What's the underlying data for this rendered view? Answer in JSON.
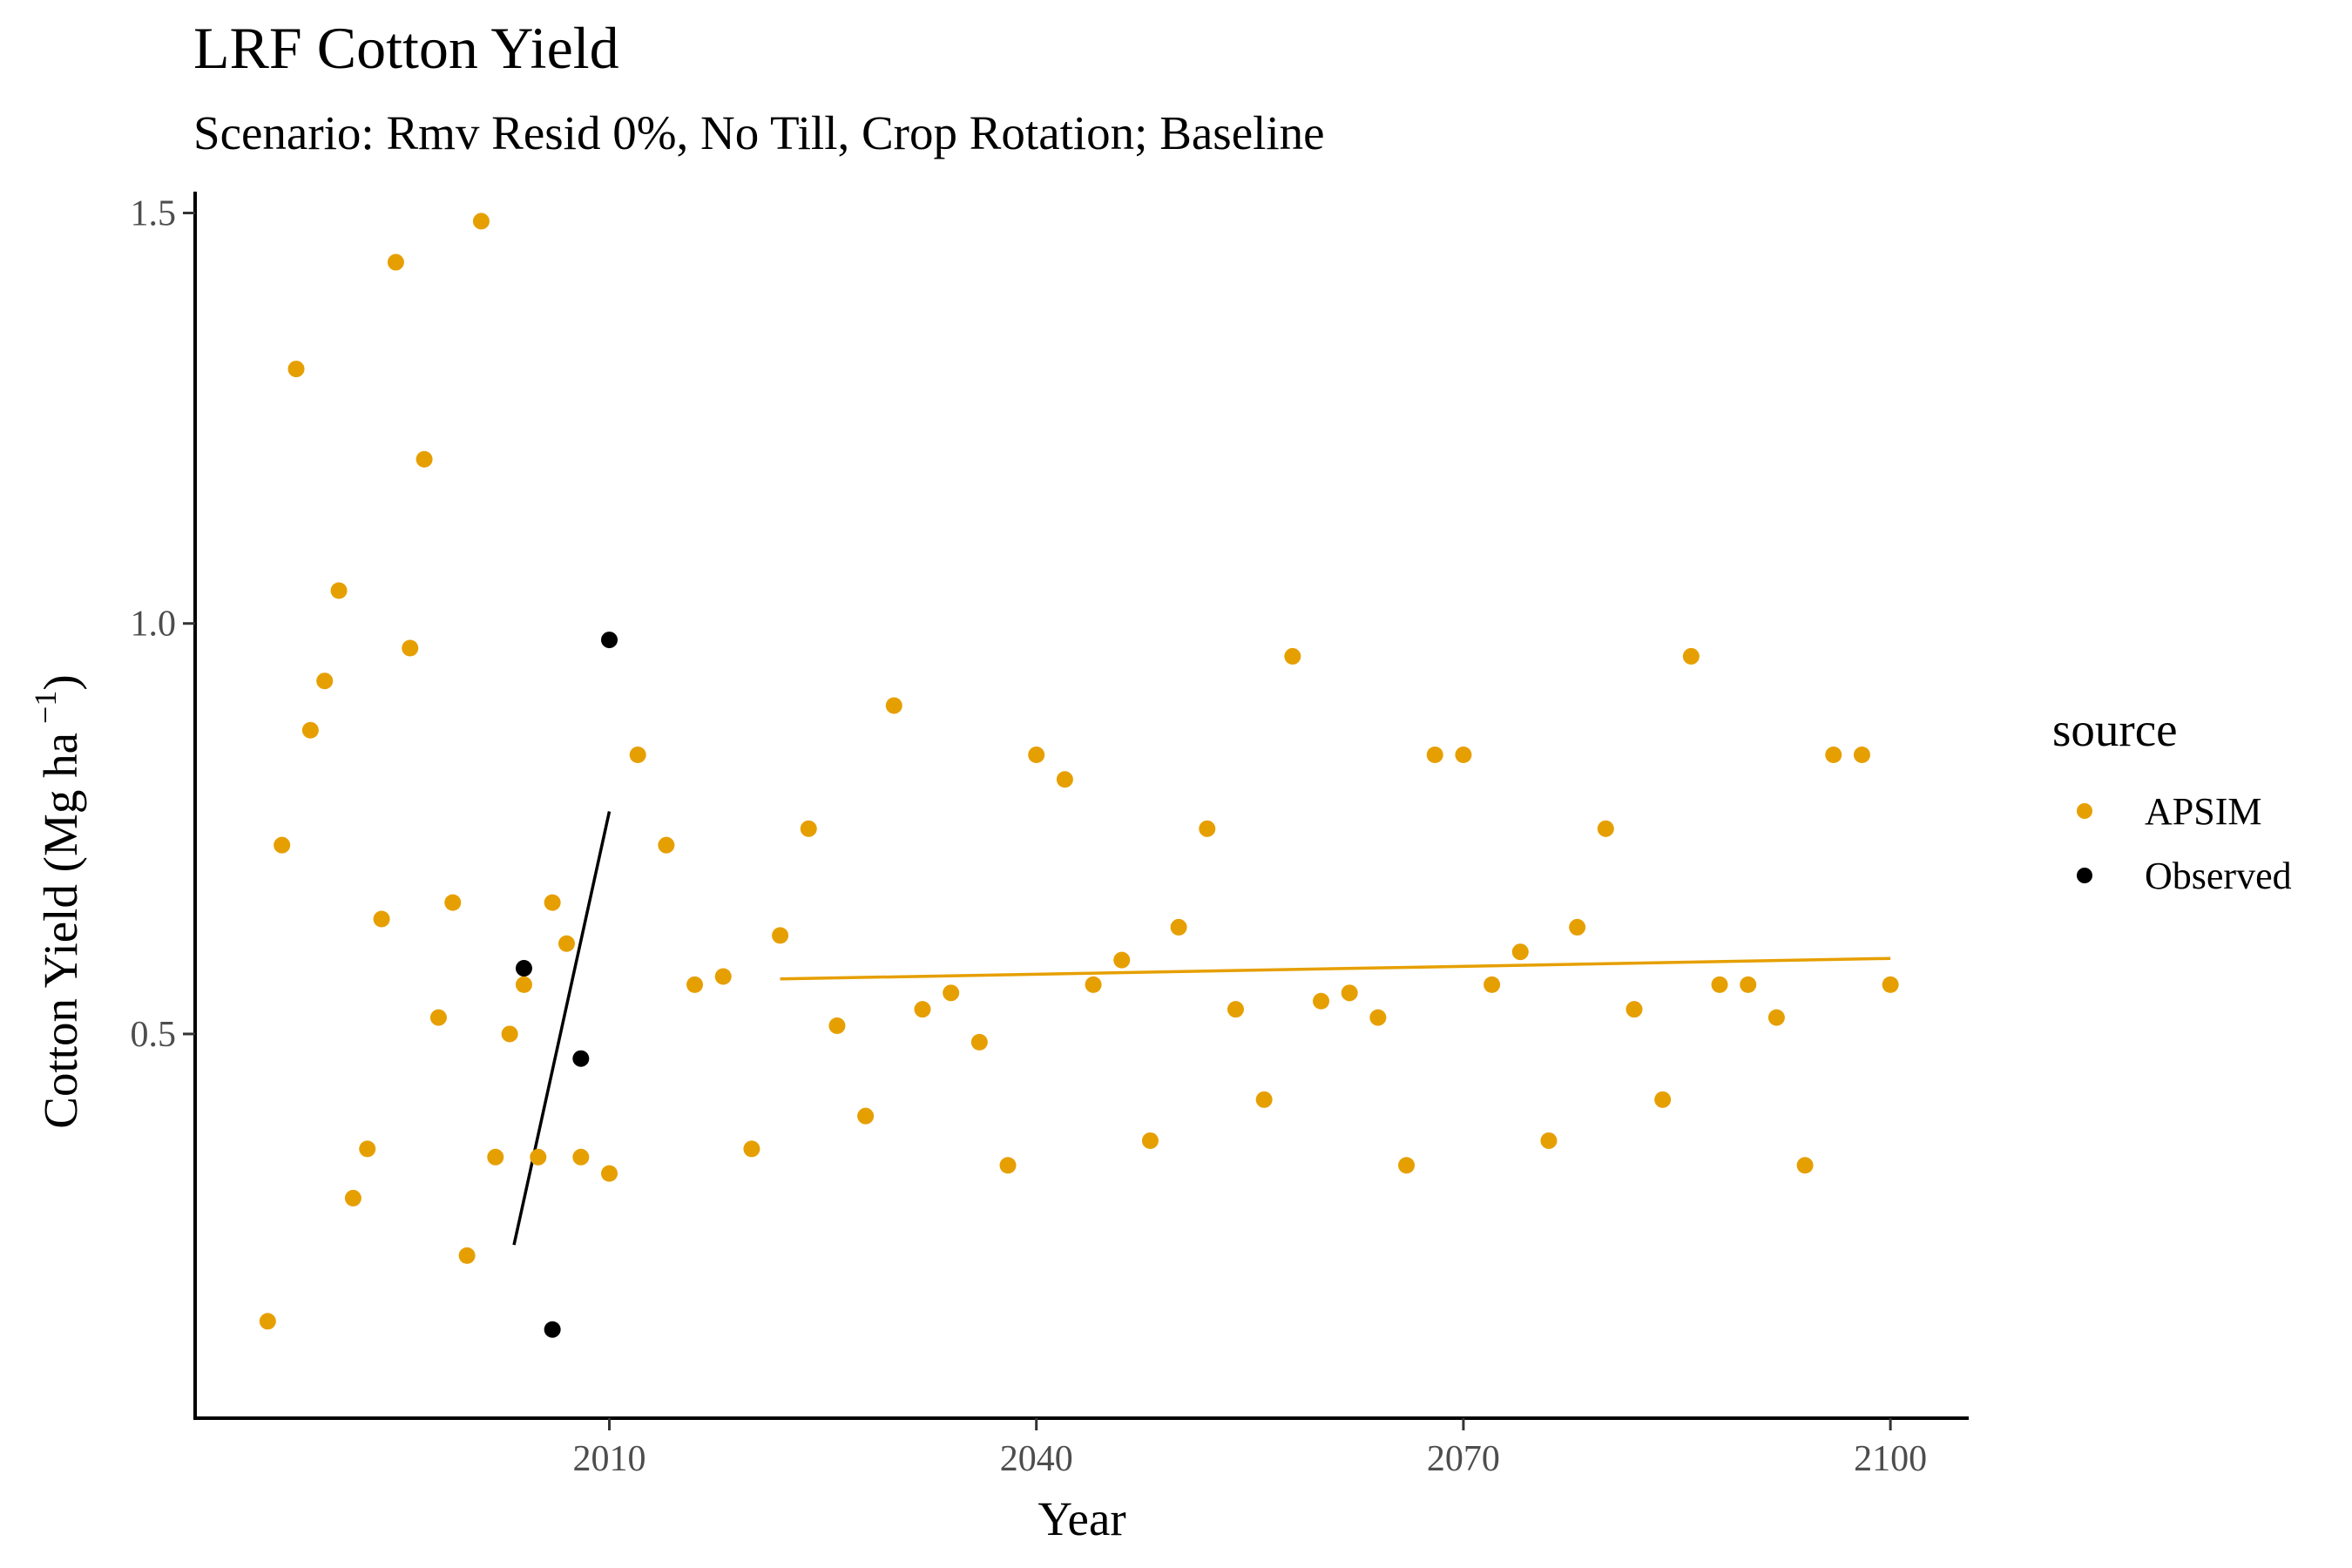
{
  "chart_data": {
    "type": "scatter",
    "title": "LRF Cotton Yield",
    "subtitle": "Scenario: Rmv Resid 0%, No Till, Crop Rotation; Baseline",
    "xlabel": "Year",
    "ylabel": "Cotton Yield (Mg ha",
    "ylabel_superscript": "−1",
    "ylabel_close": ")",
    "xlim": [
      1980.9,
      2105.5
    ],
    "ylim": [
      0.032,
      1.526
    ],
    "x_ticks": [
      2010,
      2040,
      2070,
      2100
    ],
    "x_tick_labels": [
      "2010",
      "2040",
      "2070",
      "2100"
    ],
    "y_ticks": [
      0.5,
      1.0,
      1.5
    ],
    "y_tick_labels": [
      "0.5",
      "1.0",
      "1.5"
    ],
    "grid": false,
    "legend": {
      "title": "source",
      "position": "right",
      "entries": [
        {
          "label": "APSIM",
          "color": "#E69F00"
        },
        {
          "label": "Observed",
          "color": "#000000"
        }
      ]
    },
    "series": [
      {
        "name": "APSIM",
        "color": "#E69F00",
        "x": [
          1986,
          1987,
          1988,
          1989,
          1990,
          1991,
          1992,
          1993,
          1994,
          1995,
          1996,
          1997,
          1998,
          1999,
          2000,
          2001,
          2002,
          2003,
          2004,
          2005,
          2006,
          2007,
          2008,
          2010,
          2012,
          2014,
          2016,
          2018,
          2020,
          2022,
          2024,
          2026,
          2028,
          2030,
          2032,
          2034,
          2036,
          2038,
          2040,
          2042,
          2044,
          2046,
          2048,
          2050,
          2052,
          2054,
          2056,
          2058,
          2060,
          2062,
          2064,
          2066,
          2068,
          2070,
          2072,
          2074,
          2076,
          2078,
          2080,
          2082,
          2084,
          2086,
          2088,
          2090,
          2092,
          2094,
          2096,
          2098,
          2100
        ],
        "y": [
          0.15,
          0.73,
          1.31,
          0.87,
          0.93,
          1.04,
          0.3,
          0.36,
          0.64,
          1.44,
          0.97,
          1.2,
          0.52,
          0.66,
          0.23,
          1.49,
          0.35,
          0.5,
          0.56,
          0.35,
          0.66,
          0.61,
          0.35,
          0.33,
          0.84,
          0.73,
          0.56,
          0.57,
          0.36,
          0.62,
          0.75,
          0.51,
          0.4,
          0.9,
          0.53,
          0.55,
          0.49,
          0.34,
          0.84,
          0.81,
          0.56,
          0.59,
          0.37,
          0.63,
          0.75,
          0.53,
          0.42,
          0.96,
          0.54,
          0.55,
          0.52,
          0.34,
          0.84,
          0.84,
          0.56,
          0.6,
          0.37,
          0.63,
          0.75,
          0.53,
          0.42,
          0.96,
          0.56,
          0.56,
          0.52,
          0.34,
          0.84,
          0.84,
          0.56
        ]
      },
      {
        "name": "Observed",
        "color": "#000000",
        "x": [
          2004,
          2006,
          2008,
          2010
        ],
        "y": [
          0.58,
          0.14,
          0.47,
          0.98
        ]
      }
    ],
    "trend_lines": [
      {
        "series": "APSIM",
        "color": "#E69F00",
        "x": [
          2022,
          2100
        ],
        "y": [
          0.567,
          0.592
        ]
      },
      {
        "series": "Observed",
        "color": "#000000",
        "x": [
          2003.3,
          2010
        ],
        "y": [
          0.243,
          0.771
        ]
      }
    ]
  }
}
